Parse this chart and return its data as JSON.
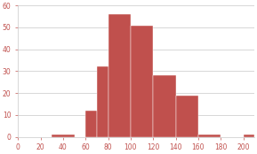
{
  "bar_lefts": [
    30,
    60,
    70,
    80,
    100,
    120,
    140,
    160,
    200
  ],
  "bar_heights": [
    1,
    12,
    32,
    56,
    51,
    28,
    19,
    1,
    1
  ],
  "bar_width": [
    20,
    10,
    10,
    20,
    20,
    20,
    20,
    20,
    10
  ],
  "bar_color": "#c0504d",
  "bar_edgecolor": "#ffffff",
  "xlim": [
    0,
    210
  ],
  "ylim": [
    0,
    60
  ],
  "xticks": [
    0,
    20,
    40,
    60,
    80,
    100,
    120,
    140,
    160,
    180,
    200
  ],
  "yticks": [
    0,
    10,
    20,
    30,
    40,
    50,
    60
  ],
  "grid_color": "#c8c8c8",
  "background_color": "#ffffff",
  "tick_label_fontsize": 5.5,
  "tick_label_color": "#c0504d"
}
